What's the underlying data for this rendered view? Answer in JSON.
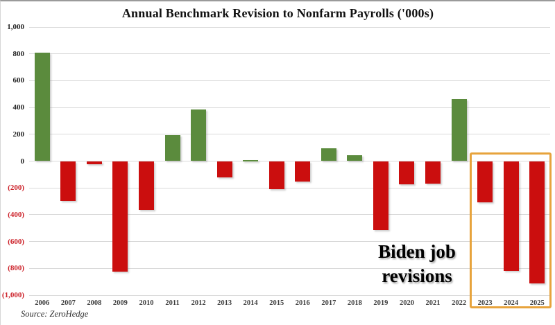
{
  "source_label": "Source: ZeroHedge",
  "annotation": {
    "line1": "Biden job",
    "line2": "revisions"
  },
  "colors": {
    "positive_bar": "#5b8b3d",
    "negative_bar": "#cb0e0e",
    "highlight_box": "#e7a33c",
    "gridline": "#d9d9d9",
    "negative_tick_text": "#cc2028",
    "positive_tick_text": "#262626"
  },
  "chart_data": {
    "type": "bar",
    "title": "Annual Benchmark Revision to Nonfarm Payrolls ('000s)",
    "xlabel": "",
    "ylabel": "",
    "ylim": [
      -1000,
      1000
    ],
    "grid": true,
    "legend": "none",
    "categories": [
      "2006",
      "2007",
      "2008",
      "2009",
      "2010",
      "2011",
      "2012",
      "2013",
      "2014",
      "2015",
      "2016",
      "2017",
      "2018",
      "2019",
      "2020",
      "2021",
      "2022",
      "2023",
      "2024",
      "2025"
    ],
    "values": [
      810,
      -297,
      -21,
      -824,
      -366,
      192,
      386,
      -124,
      7,
      -208,
      -150,
      95,
      43,
      -514,
      -173,
      -166,
      462,
      -306,
      -818,
      -911
    ],
    "y_ticks": [
      {
        "value": 1000,
        "label": "1,000"
      },
      {
        "value": 800,
        "label": "800"
      },
      {
        "value": 600,
        "label": "600"
      },
      {
        "value": 400,
        "label": "400"
      },
      {
        "value": 200,
        "label": "200"
      },
      {
        "value": 0,
        "label": "0"
      },
      {
        "value": -200,
        "label": "(200)"
      },
      {
        "value": -400,
        "label": "(400)"
      },
      {
        "value": -600,
        "label": "(600)"
      },
      {
        "value": -800,
        "label": "(800)"
      },
      {
        "value": -1000,
        "label": "(1,000)"
      }
    ],
    "highlight": {
      "categories": [
        "2023",
        "2024",
        "2025"
      ],
      "annotation_text": "Biden job revisions"
    }
  }
}
